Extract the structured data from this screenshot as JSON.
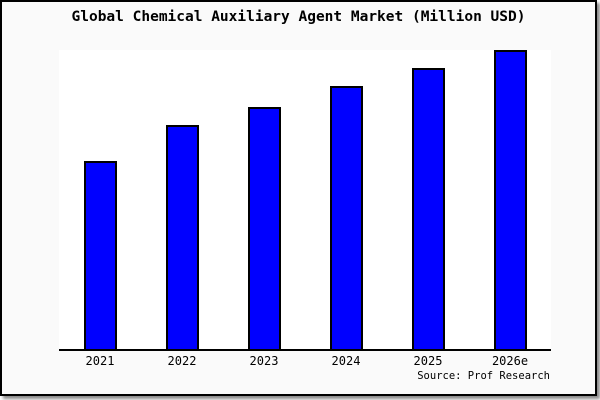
{
  "window": {
    "title": "Global Chemical Auxiliary Agent Market (Million USD)",
    "source_credit": "Source: Prof Research"
  },
  "colors": {
    "canvas_background": "#fafafa",
    "plot_background": "#ffffff",
    "bar_fill": "#0000ff",
    "bar_border": "#000000",
    "axis_line": "#000000",
    "text": "#000000",
    "frame_border": "#000000"
  },
  "chart_data": {
    "type": "bar",
    "title": "Global Chemical Auxiliary Agent Market (Million USD)",
    "categories": [
      "2021",
      "2022",
      "2023",
      "2024",
      "2025",
      "2026e"
    ],
    "values": [
      63,
      75,
      81,
      88,
      94,
      100
    ],
    "value_note": "y-axis is unlabeled in the image; values are relative bar heights normalized to 2026e = 100",
    "xlabel": "",
    "ylabel": "",
    "ylim": [
      0,
      100
    ],
    "grid": false,
    "legend": false,
    "source": "Source: Prof Research"
  }
}
